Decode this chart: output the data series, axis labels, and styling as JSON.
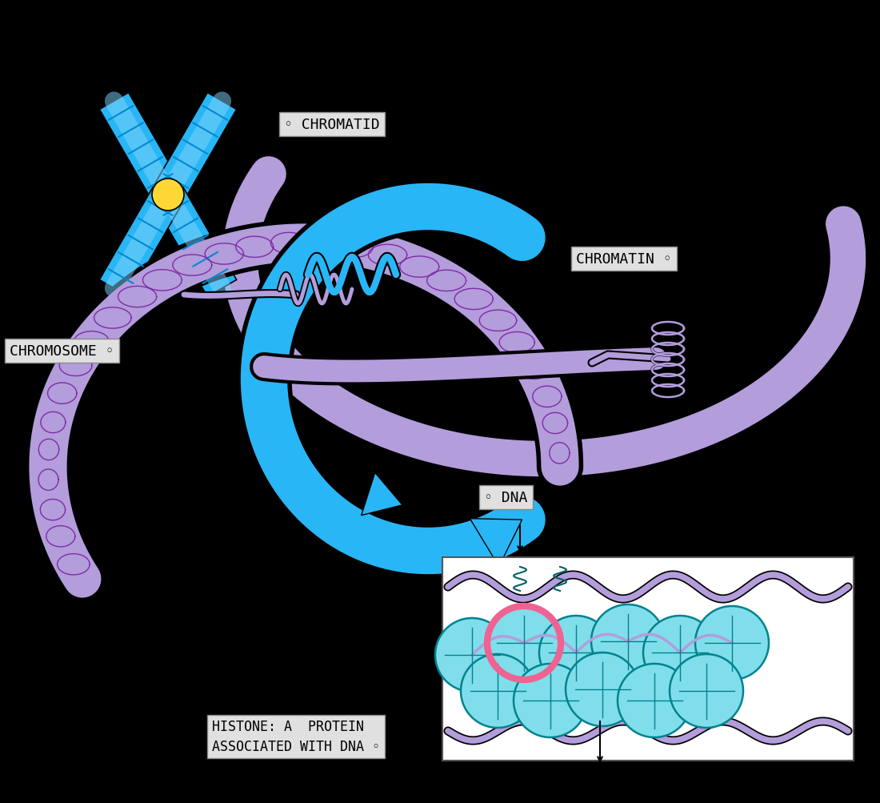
{
  "background_color": "#000000",
  "chr_main": "#29b6f6",
  "chr_light": "#81d4fa",
  "chr_dark": "#0288d1",
  "centromere": "#fdd835",
  "purple_main": "#b39ddb",
  "purple_dark": "#7e57c2",
  "purple_coil": "#7b1fa2",
  "blue_main": "#29b6f6",
  "label_bg": "#e0e0e0",
  "histone_fill": "#80deea",
  "histone_edge": "#00838f",
  "histone_pink": "#f06292",
  "white": "#ffffff",
  "black": "#000000",
  "labels": {
    "chromatid": "◦ CHROMATID",
    "chromosome": "CHROMOSOME ◦",
    "chromatin": "CHROMATIN ◦",
    "dna": "◦ DNA",
    "histone_line1": "HISTONE: A  PROTEIN",
    "histone_line2": "ASSOCIATED WITH DNA ◦"
  }
}
